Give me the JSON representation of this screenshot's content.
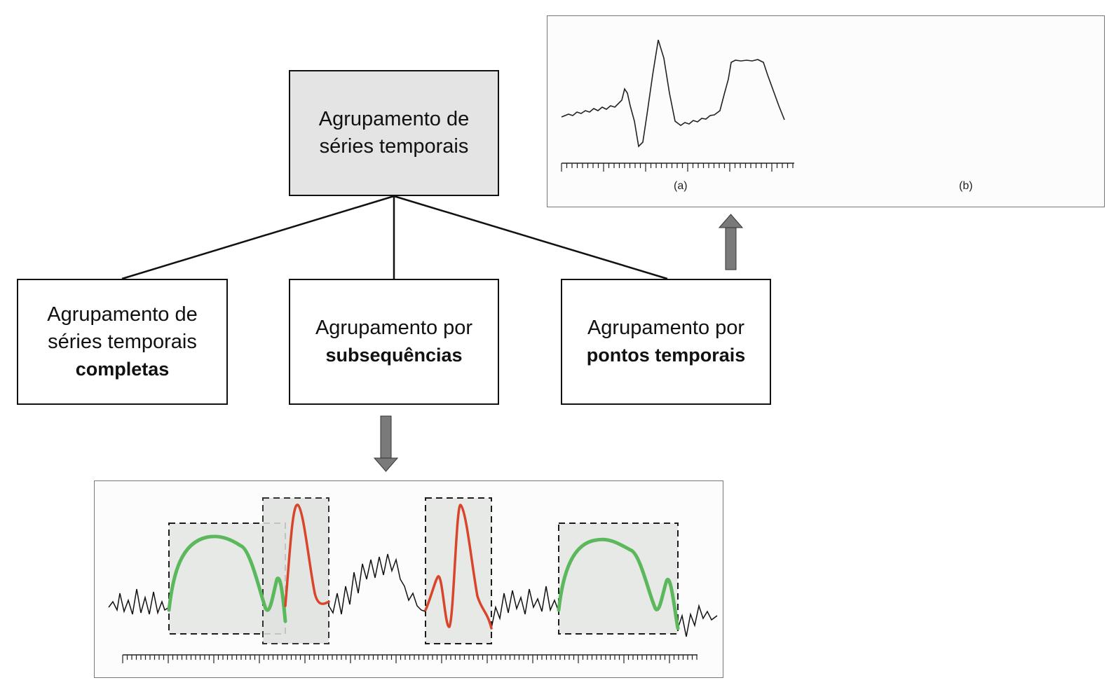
{
  "diagram": {
    "root": {
      "line1": "Agrupamento de",
      "line2": "séries temporais"
    },
    "children": [
      {
        "line1": "Agrupamento de",
        "line2": "séries temporais",
        "bold": "completas"
      },
      {
        "line1": "Agrupamento por",
        "bold": "subsequências"
      },
      {
        "line1": "Agrupamento por",
        "bold": "pontos temporais"
      }
    ]
  },
  "points_panel": {
    "caption_a": "(a)",
    "caption_b": "(b)"
  },
  "colors": {
    "green": "#5cb85c",
    "red": "#d9452b",
    "arrow_fill": "#7a7a7a",
    "box_fill_gray": "#e4e4e4",
    "point_fill": "#c9c9ef",
    "point_end_red": "#e07a5a"
  }
}
